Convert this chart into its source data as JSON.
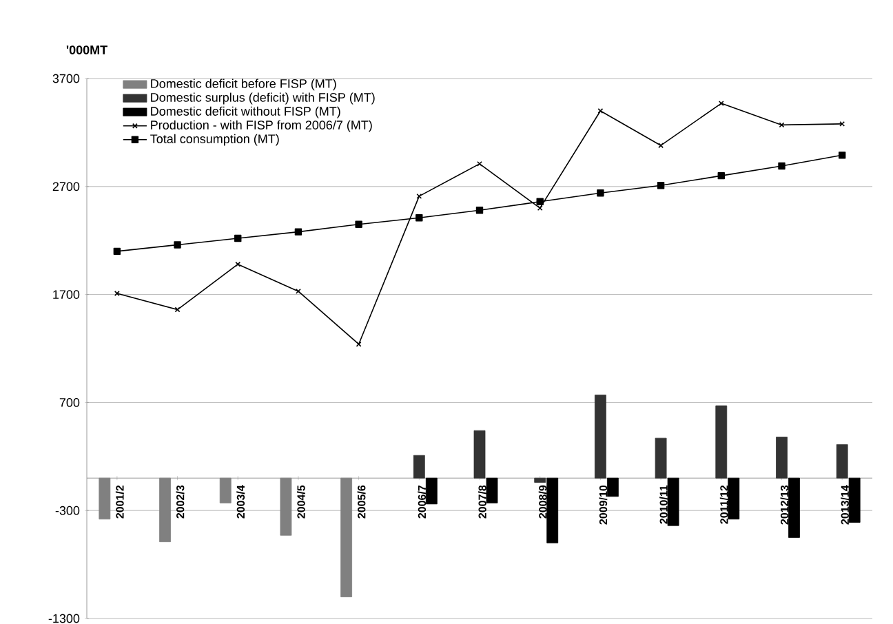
{
  "chart_data": {
    "type": "bar",
    "ylabel": "'000MT",
    "categories": [
      "2001/2",
      "2002/3",
      "2003/4",
      "2004/5",
      "2005/6",
      "2006/7",
      "2007/8",
      "2008/9",
      "2009/10",
      "2010/11",
      "2011/12",
      "2012/13",
      "2013/14"
    ],
    "series": [
      {
        "name": "Domestic deficit before FISP (MT)",
        "color": "#808080",
        "values": [
          -380,
          -590,
          -230,
          -530,
          -1100,
          null,
          null,
          null,
          null,
          null,
          null,
          null,
          null
        ]
      },
      {
        "name": "Domestic surplus (deficit) with FISP (MT)",
        "color": "#333333",
        "values": [
          null,
          null,
          null,
          null,
          null,
          210,
          440,
          -40,
          770,
          370,
          670,
          380,
          310
        ]
      },
      {
        "name": "Domestic deficit without FISP  (MT)",
        "color": "#000000",
        "values": [
          null,
          null,
          null,
          null,
          null,
          -240,
          -230,
          -600,
          -170,
          -440,
          -380,
          -550,
          -410
        ]
      },
      {
        "name": "Production - with FISP from 2006/7 (MT)",
        "color": "#000000",
        "type": "line",
        "marker": "cross",
        "values": [
          1710,
          1560,
          1980,
          1730,
          1240,
          2610,
          2910,
          2500,
          3400,
          3080,
          3470,
          3270,
          3280
        ]
      },
      {
        "name": "Total consumption (MT)",
        "color": "#000000",
        "type": "line",
        "marker": "square",
        "values": [
          2100,
          2160,
          2220,
          2280,
          2350,
          2410,
          2480,
          2560,
          2640,
          2710,
          2800,
          2890,
          2990
        ]
      }
    ],
    "ylim": [
      -1300,
      3700
    ],
    "yticks": [
      -1300,
      -300,
      700,
      1700,
      2700,
      3700
    ],
    "grid": "y",
    "legend": "top left"
  }
}
